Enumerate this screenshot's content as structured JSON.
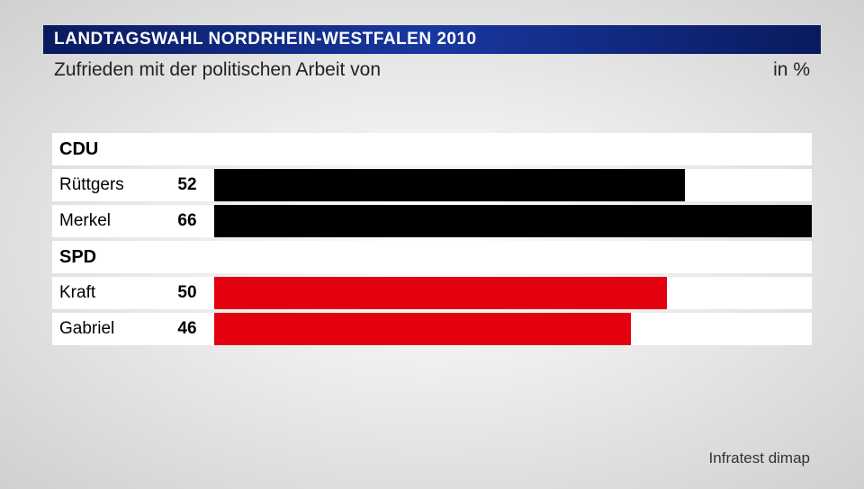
{
  "header": {
    "title": "LANDTAGSWAHL NORDRHEIN-WESTFALEN 2010",
    "subtitle": "Zufrieden mit der politischen Arbeit von",
    "unit": "in %"
  },
  "chart": {
    "type": "bar",
    "max_value": 66,
    "groups": [
      {
        "label": "CDU",
        "bar_color": "#000000",
        "items": [
          {
            "name": "Rüttgers",
            "value": 52
          },
          {
            "name": "Merkel",
            "value": 66
          }
        ]
      },
      {
        "label": "SPD",
        "bar_color": "#e3000f",
        "items": [
          {
            "name": "Kraft",
            "value": 50
          },
          {
            "name": "Gabriel",
            "value": 46
          }
        ]
      }
    ],
    "row_background": "#ffffff",
    "label_fontsize": 19,
    "value_fontsize": 19,
    "group_fontsize": 20
  },
  "source": "Infratest dimap"
}
